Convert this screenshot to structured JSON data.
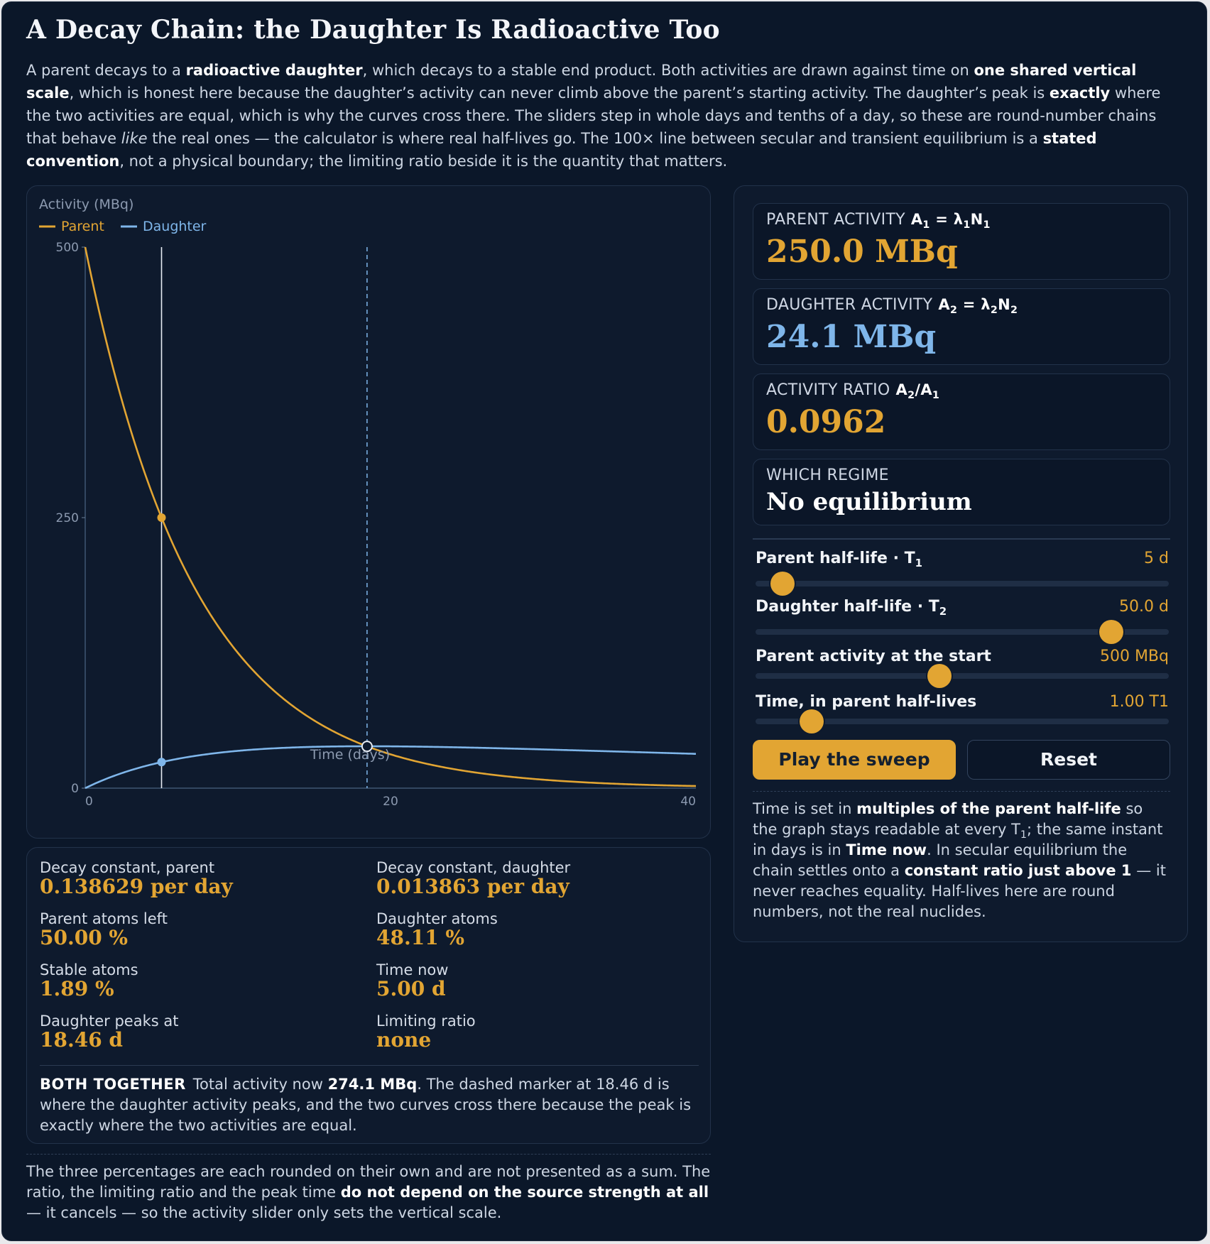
{
  "title": "A Decay Chain: the Daughter Is Radioactive Too",
  "intro": {
    "p1": "A parent decays to a ",
    "b1": "radioactive daughter",
    "p2": ", which decays to a stable end product. Both activities are drawn against time on ",
    "b2": "one shared vertical scale",
    "p3": ", which is honest here because the daughter’s activity can never climb above the parent’s starting activity. The daughter’s peak is ",
    "b3": "exactly",
    "p4": " where the two activities are equal, which is why the curves cross there. The sliders step in whole days and tenths of a day, so these are round-number chains that behave ",
    "i1": "like",
    "p5": " the real ones — the calculator is where real half-lives go. The 100× line between secular and transient equilibrium is a ",
    "b4": "stated convention",
    "p6": ", not a physical boundary; the limiting ratio beside it is the quantity that matters."
  },
  "chart_data": {
    "type": "line",
    "ylabel": "Activity (MBq)",
    "xlabel": "Time (days)",
    "xlim": [
      0,
      40
    ],
    "ylim": [
      0,
      500
    ],
    "x_ticks": [
      "0",
      "20",
      "40"
    ],
    "y_ticks": [
      "0",
      "250",
      "500"
    ],
    "legend_placement": "top-left",
    "parent_half_life_days": 5,
    "daughter_half_life_days": 50,
    "initial_activity_mbq": 500,
    "series": [
      {
        "name": "Parent",
        "color": "#e2a533",
        "x": [
          0,
          2,
          4,
          5,
          6,
          8,
          10,
          12,
          14,
          16,
          18,
          18.46,
          20,
          24,
          28,
          32,
          36,
          40
        ],
        "values": [
          500,
          378.9,
          287.2,
          250.0,
          217.6,
          164.9,
          125.0,
          94.7,
          71.8,
          54.4,
          41.2,
          38.6,
          31.3,
          18.0,
          10.3,
          5.9,
          3.4,
          2.0
        ]
      },
      {
        "name": "Daughter",
        "color": "#7fb6ea",
        "x": [
          0,
          2,
          4,
          5,
          6,
          8,
          10,
          12,
          14,
          16,
          18,
          18.46,
          20,
          24,
          28,
          32,
          36,
          40
        ],
        "values": [
          0,
          13.2,
          20.6,
          24.1,
          26.8,
          31.1,
          34.0,
          35.9,
          37.1,
          37.9,
          38.4,
          38.6,
          38.4,
          37.7,
          36.6,
          35.5,
          34.2,
          32.9
        ]
      }
    ],
    "markers": {
      "time_now_days": 5.0,
      "parent_at_now": 250.0,
      "daughter_at_now": 24.1,
      "peak_time_days": 18.46,
      "peak_activity": 38.6
    }
  },
  "readouts": {
    "parent": {
      "caption": "PARENT ACTIVITY",
      "value": "250.0 MBq",
      "color": "#e2a533"
    },
    "daughter": {
      "caption": "DAUGHTER ACTIVITY",
      "value": "24.1 MBq",
      "color": "#7fb6ea"
    },
    "ratio": {
      "caption": "ACTIVITY RATIO",
      "value": "0.0962",
      "color": "#e2a533"
    },
    "regime": {
      "caption": "WHICH REGIME",
      "value": "No equilibrium",
      "color": "#ffffff"
    }
  },
  "sliders": [
    {
      "label": "Parent half-life · T",
      "sub": "1",
      "value": "5 d",
      "level": 0.065
    },
    {
      "label": "Daughter half-life · T",
      "sub": "2",
      "value": "50.0 d",
      "level": 0.86
    },
    {
      "label": "Parent activity at the start",
      "sub": "",
      "value": "500 MBq",
      "level": 0.445
    },
    {
      "label": "Time, in parent half-lives",
      "sub": "",
      "value": "1.00 T1",
      "level": 0.135
    }
  ],
  "buttons": {
    "play": "Play the sweep",
    "reset": "Reset"
  },
  "side_note": {
    "p1": "Time is set in ",
    "b1": "multiples of the parent half-life",
    "p2": " so the graph stays readable at every T",
    "sub1": "1",
    "p3": "; the same instant in days is in ",
    "b2": "Time now",
    "p4": ". In secular equilibrium the chain settles onto a ",
    "b3": "constant ratio just above 1",
    "p5": " — it never reaches equality. Half-lives here are round numbers, not the real nuclides."
  },
  "stats": {
    "decay_parent": {
      "label": "Decay constant, parent",
      "value": "0.138629 per day"
    },
    "decay_daughter": {
      "label": "Decay constant, daughter",
      "value": "0.013863 per day"
    },
    "parent_left": {
      "label": "Parent atoms left",
      "value": "50.00 %"
    },
    "daughter_atoms": {
      "label": "Daughter atoms",
      "value": "48.11 %"
    },
    "stable": {
      "label": "Stable atoms",
      "value": "1.89 %"
    },
    "time_now": {
      "label": "Time now",
      "value": "5.00 d"
    },
    "peak": {
      "label": "Daughter peaks at",
      "value": "18.46 d"
    },
    "limiting": {
      "label": "Limiting ratio",
      "value": "none"
    }
  },
  "together": {
    "tag": "BOTH TOGETHER",
    "p1": "Total activity now ",
    "b1": "274.1 MBq",
    "p2": ". The dashed marker at 18.46 d is where the daughter activity peaks, and the two curves cross there because the peak is exactly where the two activities are equal."
  },
  "footnote": {
    "p1": "The three percentages are each rounded on their own and are not presented as a sum. The ratio, the limiting ratio and the peak time ",
    "b1": "do not depend on the source strength at all",
    "p2": " — it cancels — so the activity slider only sets the vertical scale."
  }
}
